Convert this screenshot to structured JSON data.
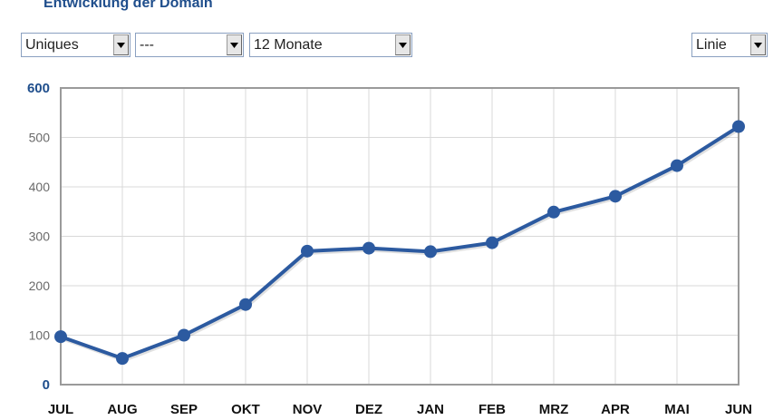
{
  "header": {
    "title": "Entwicklung der Domain"
  },
  "controls": {
    "metric": "Uniques",
    "filter": "---",
    "period": "12 Monate",
    "chart_type": "Linie"
  },
  "colors": {
    "line": "#2c5aa0",
    "title": "#1f4e8c",
    "grid": "#d9d9d9",
    "frame": "#9a9a9a"
  },
  "chart_data": {
    "type": "line",
    "title": "",
    "xlabel": "",
    "ylabel": "",
    "categories": [
      "JUL",
      "AUG",
      "SEP",
      "OKT",
      "NOV",
      "DEZ",
      "JAN",
      "FEB",
      "MRZ",
      "APR",
      "MAI",
      "JUN"
    ],
    "values": [
      97,
      53,
      100,
      162,
      270,
      276,
      269,
      287,
      349,
      381,
      443,
      522
    ],
    "ylim": [
      0,
      600
    ],
    "yticks": [
      0,
      100,
      200,
      300,
      400,
      500,
      600
    ],
    "grid": true,
    "legend": "none"
  }
}
